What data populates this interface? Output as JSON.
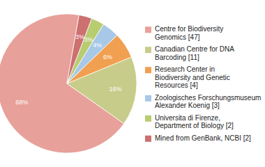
{
  "chart_data": {
    "type": "pie",
    "labels": [
      "Centre for Biodiversity\nGenomics [47]",
      "Canadian Centre for DNA\nBarcoding [11]",
      "Research Center in\nBiodiversity and Genetic\nResources [4]",
      "Zoologisches Forschungsmuseum\nAlexander Koenig [3]",
      "Universita di Firenze,\nDepartment of Biology [2]",
      "Mined from GenBank, NCBI [2]"
    ],
    "values": [
      68,
      16,
      6,
      4,
      3,
      3
    ],
    "value_labels": [
      "68%",
      "16%",
      "6%",
      "4%",
      "3%",
      "3%"
    ],
    "colors": [
      "#e8a09a",
      "#c8cc8a",
      "#f0a050",
      "#a8c8e8",
      "#b8cc70",
      "#cc7070"
    ],
    "data_labels": true,
    "legend": "right"
  }
}
